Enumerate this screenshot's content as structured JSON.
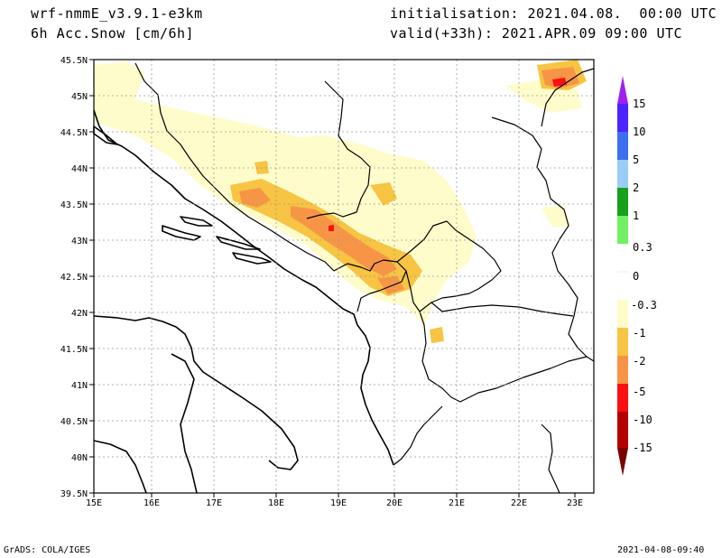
{
  "header": {
    "model": "wrf-nmmE_v3.9.1-e3km",
    "field": "6h Acc.Snow [cm/6h]",
    "init": "initialisation: 2021.04.08.  00:00 UTC",
    "valid": "valid(+33h): 2021.APR.09 09:00 UTC"
  },
  "footer": {
    "credit": "GrADS: COLA/IGES",
    "timestamp": "2021-04-08-09:40"
  },
  "map": {
    "lon_labels": [
      "15E",
      "16E",
      "17E",
      "18E",
      "19E",
      "20E",
      "21E",
      "22E",
      "23E"
    ],
    "lat_labels": [
      "45.5N",
      "45N",
      "44.5N",
      "44N",
      "43.5N",
      "43N",
      "42.5N",
      "42N",
      "41.5N",
      "41N",
      "40.5N",
      "40N",
      "39.5N"
    ]
  },
  "colorbar": {
    "labels": [
      "15",
      "10",
      "5",
      "2",
      "1",
      "0.3",
      "0",
      "-0.3",
      "-1",
      "-2",
      "-5",
      "-10",
      "-15"
    ],
    "colors": [
      "#4b24ff",
      "#3c6ff0",
      "#9acdf5",
      "#16a01c",
      "#72f064",
      "#ffffff",
      "#ffffff",
      "#fffccb",
      "#f7c443",
      "#f79546",
      "#fb0f0f",
      "#b50000"
    ],
    "top_arrow_color": "#a020f0",
    "bottom_arrow_color": "#7a0000"
  }
}
